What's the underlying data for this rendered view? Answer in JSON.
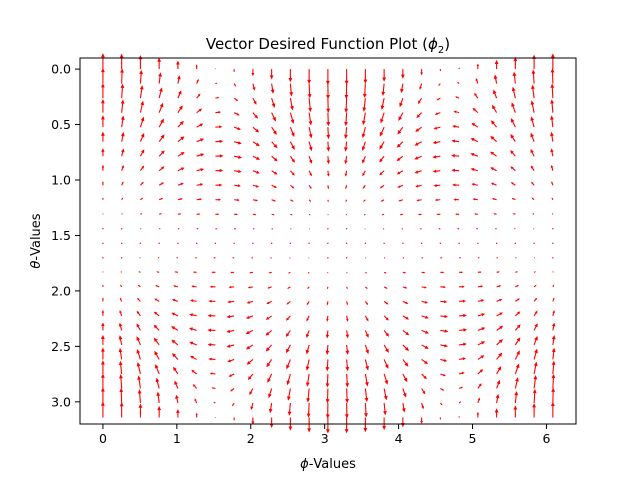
{
  "chart_data": {
    "type": "quiver",
    "title_prefix": "Vector Desired Function Plot (",
    "title_symbol": "ϕ",
    "title_subscript": "2",
    "title_suffix": ")",
    "xlabel_symbol": "ϕ",
    "xlabel_text": "-Values",
    "ylabel_symbol": "θ",
    "ylabel_text": "-Values",
    "x_ticks": [
      "0",
      "1",
      "2",
      "3",
      "4",
      "5",
      "6"
    ],
    "y_ticks": [
      "0.0",
      "0.5",
      "1.0",
      "1.5",
      "2.0",
      "2.5",
      "3.0"
    ],
    "xlim": [
      -0.31,
      6.4
    ],
    "ylim": [
      3.2,
      -0.1
    ],
    "y_inverted": true,
    "grid": false,
    "arrow_color": "#ff0000",
    "x_grid": {
      "start": 0,
      "stop": 6.0868,
      "count": 25
    },
    "y_grid": {
      "start": 0,
      "stop": 3.1416,
      "count": 25
    },
    "vector_field": {
      "u": "sin(phi) * sin(2*theta)",
      "v": "-cos(phi) * (1 + cos(2*theta))"
    }
  }
}
